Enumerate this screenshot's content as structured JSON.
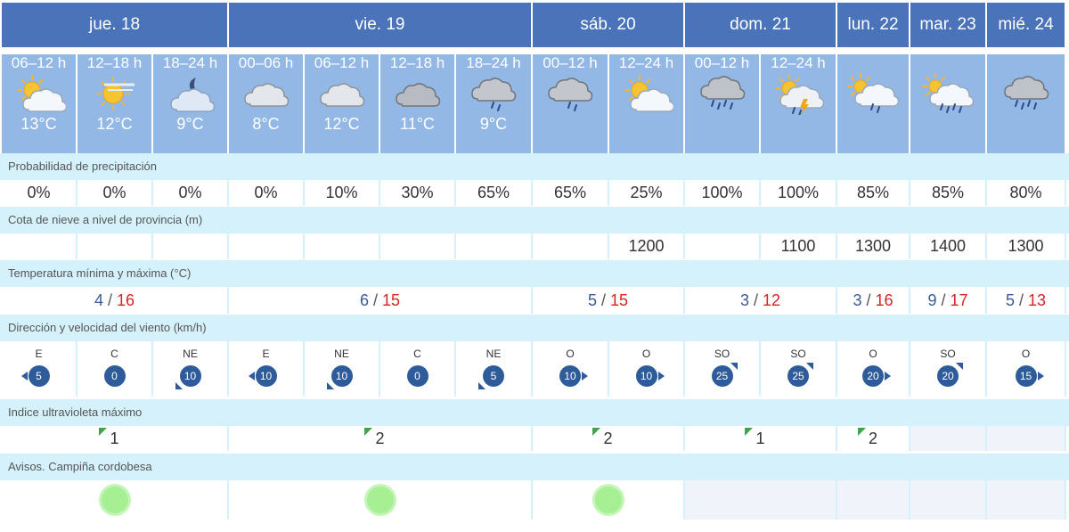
{
  "days": [
    {
      "label": "jue. 18"
    },
    {
      "label": "vie. 19"
    },
    {
      "label": "sáb. 20"
    },
    {
      "label": "dom. 21"
    },
    {
      "label": "lun. 22"
    },
    {
      "label": "mar. 23"
    },
    {
      "label": "mié. 24"
    }
  ],
  "periods": [
    {
      "label": "06–12 h",
      "temp": "13°C",
      "icon": "sun-cloud-icon"
    },
    {
      "label": "12–18 h",
      "temp": "12°C",
      "icon": "hazy-sun-icon"
    },
    {
      "label": "18–24 h",
      "temp": "9°C",
      "icon": "moon-cloud-icon"
    },
    {
      "label": "00–06 h",
      "temp": "8°C",
      "icon": "cloud-icon"
    },
    {
      "label": "06–12 h",
      "temp": "12°C",
      "icon": "cloud-icon"
    },
    {
      "label": "12–18 h",
      "temp": "11°C",
      "icon": "dark-cloud-icon"
    },
    {
      "label": "18–24 h",
      "temp": "9°C",
      "icon": "rain-cloud-icon"
    },
    {
      "label": "00–12 h",
      "temp": "",
      "icon": "rain-cloud-icon"
    },
    {
      "label": "12–24 h",
      "temp": "",
      "icon": "sun-cloud-icon"
    },
    {
      "label": "00–12 h",
      "temp": "",
      "icon": "heavy-rain-cloud-icon"
    },
    {
      "label": "12–24 h",
      "temp": "",
      "icon": "storm-sun-icon"
    },
    {
      "label": "",
      "temp": "",
      "icon": "sun-rain-cloud-icon"
    },
    {
      "label": "",
      "temp": "",
      "icon": "sun-heavy-rain-cloud-icon"
    },
    {
      "label": "",
      "temp": "",
      "icon": "heavy-rain-cloud-icon"
    }
  ],
  "sections": {
    "precip": "Probabilidad de precipitación",
    "snow": "Cota de nieve a nivel de provincia (m)",
    "temp": "Temperatura mínima y máxima (°C)",
    "wind": "Dirección y velocidad del viento (km/h)",
    "uv": "Indice ultravioleta máximo",
    "alerts": "Avisos. Campiña cordobesa"
  },
  "precip": [
    "0%",
    "0%",
    "0%",
    "0%",
    "10%",
    "30%",
    "65%",
    "65%",
    "25%",
    "100%",
    "100%",
    "85%",
    "85%",
    "80%"
  ],
  "snow": [
    "",
    "",
    "",
    "",
    "",
    "",
    "",
    "",
    "1200",
    "",
    "1100",
    "1300",
    "1400",
    "1300"
  ],
  "temps": [
    {
      "min": "4",
      "max": "16"
    },
    {
      "min": "6",
      "max": "15"
    },
    {
      "min": "5",
      "max": "15"
    },
    {
      "min": "3",
      "max": "12"
    },
    {
      "min": "3",
      "max": "16"
    },
    {
      "min": "9",
      "max": "17"
    },
    {
      "min": "5",
      "max": "13"
    }
  ],
  "temp_separator": "/",
  "wind": [
    {
      "dir": "E",
      "speed": "5",
      "arrow": "left"
    },
    {
      "dir": "C",
      "speed": "0",
      "arrow": "none"
    },
    {
      "dir": "NE",
      "speed": "10",
      "arrow": "down-left"
    },
    {
      "dir": "E",
      "speed": "10",
      "arrow": "left"
    },
    {
      "dir": "NE",
      "speed": "10",
      "arrow": "down-left"
    },
    {
      "dir": "C",
      "speed": "0",
      "arrow": "none"
    },
    {
      "dir": "NE",
      "speed": "5",
      "arrow": "down-left"
    },
    {
      "dir": "O",
      "speed": "10",
      "arrow": "right"
    },
    {
      "dir": "O",
      "speed": "10",
      "arrow": "right"
    },
    {
      "dir": "SO",
      "speed": "25",
      "arrow": "up-right"
    },
    {
      "dir": "SO",
      "speed": "25",
      "arrow": "up-right"
    },
    {
      "dir": "O",
      "speed": "20",
      "arrow": "right"
    },
    {
      "dir": "SO",
      "speed": "20",
      "arrow": "up-right"
    },
    {
      "dir": "O",
      "speed": "15",
      "arrow": "right"
    }
  ],
  "uv": [
    "1",
    "2",
    "2",
    "1",
    "2",
    "",
    ""
  ],
  "alerts": [
    "green",
    "green",
    "green",
    "",
    "",
    "",
    ""
  ],
  "colors": {
    "day_header": "#4a73ba",
    "period_bg": "#93b8e6",
    "section_bg": "#d5f1fb",
    "temp_min": "#3a5a99",
    "temp_max": "#d02727",
    "wind_badge": "#2e5c9a",
    "uv_flag": "#3fa34d",
    "alert_green": "#a6ef93"
  }
}
